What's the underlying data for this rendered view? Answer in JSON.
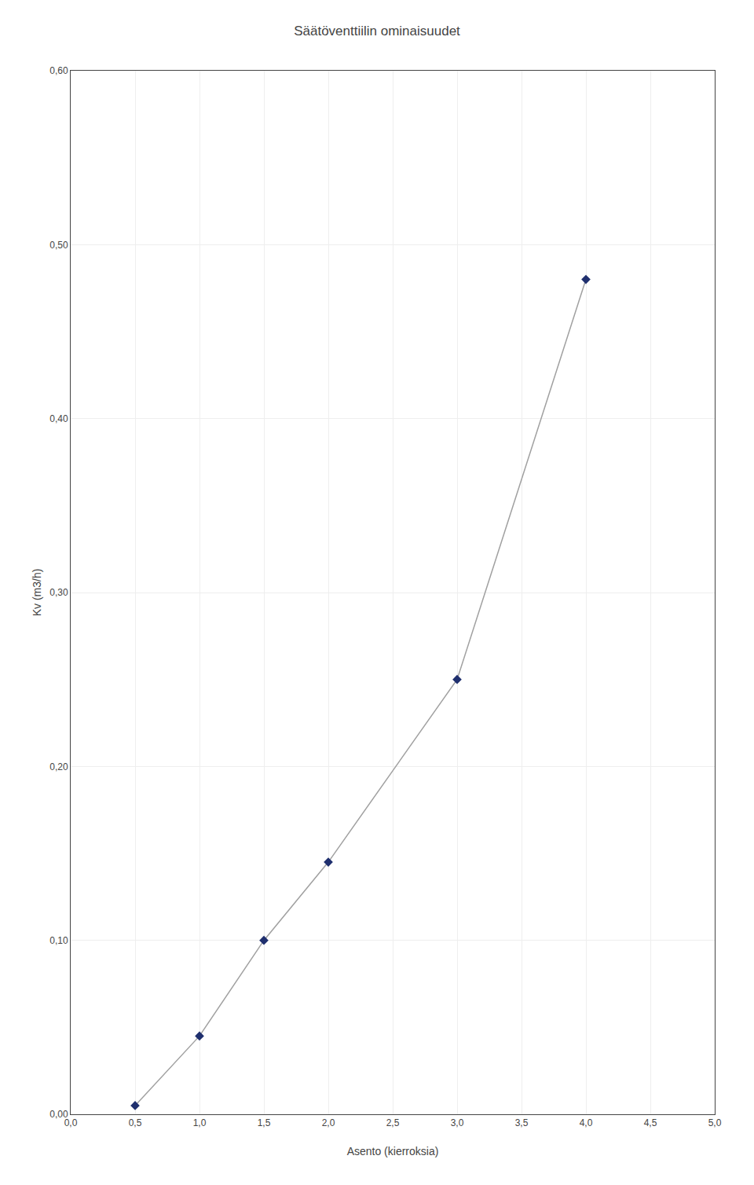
{
  "chart_data": {
    "type": "line",
    "title": "Säätöventtiilin ominaisuudet",
    "x_label": "Asento (kierroksia)",
    "y_label": "Kv (m3/h)",
    "series": [
      {
        "type": "line",
        "marker": "diamond",
        "color": "#a0a0a0",
        "colors": [
          "#1f2f6e",
          "#1f2f6e",
          "#1f2f6e",
          "#1f2f6e",
          "#1f2f6e",
          "#1f2f6e"
        ],
        "x": [
          0.5,
          1.0,
          1.5,
          2.0,
          3.0,
          4.0
        ],
        "values": [
          0.005,
          0.045,
          0.1,
          0.145,
          0.25,
          0.48
        ]
      }
    ],
    "xlim": [
      0.0,
      5.0
    ],
    "ylim": [
      0.0,
      0.6
    ],
    "xticks": [
      {
        "value": 0.0,
        "label": "0,0"
      },
      {
        "value": 0.5,
        "label": "0,5"
      },
      {
        "value": 1.0,
        "label": "1,0"
      },
      {
        "value": 1.5,
        "label": "1,5"
      },
      {
        "value": 2.0,
        "label": "2,0"
      },
      {
        "value": 2.5,
        "label": "2,5"
      },
      {
        "value": 3.0,
        "label": "3,0"
      },
      {
        "value": 3.5,
        "label": "3,5"
      },
      {
        "value": 4.0,
        "label": "4,0"
      },
      {
        "value": 4.5,
        "label": "4,5"
      },
      {
        "value": 5.0,
        "label": "5,0"
      }
    ],
    "yticks": [
      {
        "value": 0.0,
        "label": "0,00"
      },
      {
        "value": 0.1,
        "label": "0,10"
      },
      {
        "value": 0.2,
        "label": "0,20"
      },
      {
        "value": 0.3,
        "label": "0,30"
      },
      {
        "value": 0.4,
        "label": "0,40"
      },
      {
        "value": 0.5,
        "label": "0,50"
      },
      {
        "value": 0.6,
        "label": "0,60"
      }
    ],
    "grid": true
  }
}
